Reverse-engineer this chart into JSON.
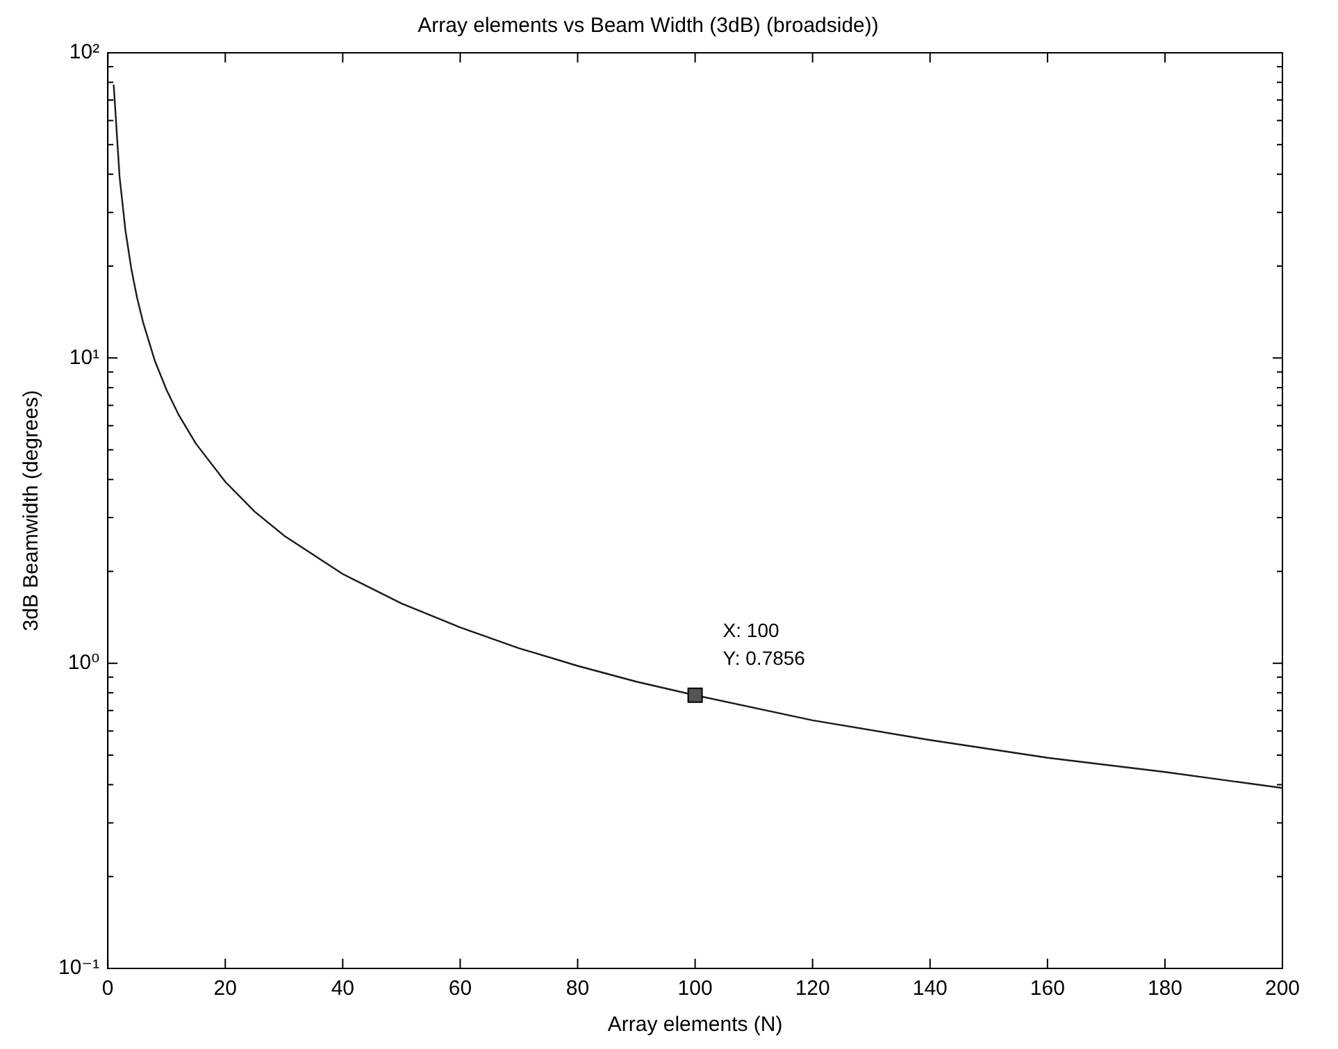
{
  "chart_data": {
    "type": "line",
    "title": "Array elements vs Beam Width (3dB) (broadside))",
    "xlabel": "Array elements (N)",
    "ylabel": "3dB Beamwidth (degrees)",
    "x": [
      1,
      2,
      3,
      4,
      5,
      6,
      8,
      10,
      12,
      15,
      20,
      25,
      30,
      40,
      50,
      60,
      70,
      80,
      90,
      100,
      120,
      140,
      160,
      180,
      200
    ],
    "series": [
      {
        "color": "#1a1a1a",
        "values": [
          78.6,
          39.3,
          26.2,
          19.6,
          15.7,
          13.1,
          9.8,
          7.86,
          6.55,
          5.24,
          3.93,
          3.14,
          2.62,
          1.96,
          1.57,
          1.31,
          1.12,
          0.98,
          0.87,
          0.7856,
          0.65,
          0.56,
          0.49,
          0.44,
          0.39
        ]
      }
    ],
    "xlim": [
      0,
      200
    ],
    "xticks": [
      0,
      20,
      40,
      60,
      80,
      100,
      120,
      140,
      160,
      180,
      200
    ],
    "ylim": [
      0.1,
      100
    ],
    "yticks": [
      {
        "value": 0.1,
        "label": "10⁻¹"
      },
      {
        "value": 1,
        "label": "10⁰"
      },
      {
        "value": 10,
        "label": "10¹"
      },
      {
        "value": 100,
        "label": "10²"
      }
    ],
    "log": "y",
    "grid": false,
    "legend": false,
    "marker": "none",
    "line_style": "solid",
    "annotations": [
      {
        "text": "X: 100\nY: 0.7856",
        "x": 100,
        "y": 0.7856
      }
    ]
  }
}
